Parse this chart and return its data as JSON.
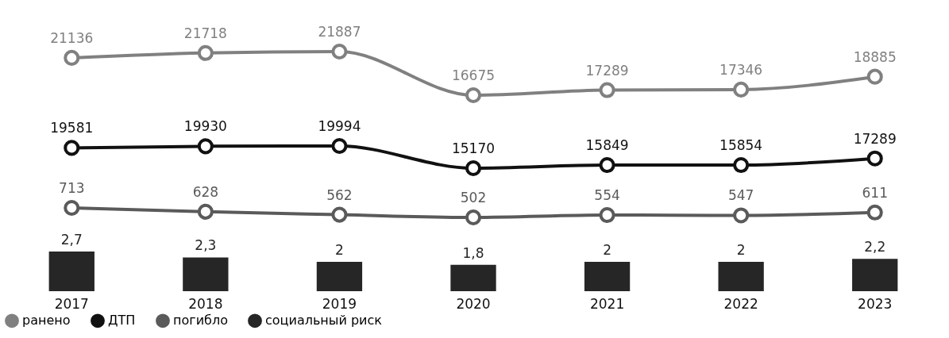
{
  "chart_data": [
    {
      "type": "line",
      "categories": [
        "2017",
        "2018",
        "2019",
        "2020",
        "2021",
        "2022",
        "2023"
      ],
      "series": [
        {
          "name": "ранено",
          "color": "#808080",
          "values": [
            21136,
            21718,
            21887,
            16675,
            17289,
            17346,
            18885
          ]
        }
      ],
      "tick_labels": false,
      "data_labels": true,
      "marker": "circle",
      "legend": "bottom"
    },
    {
      "type": "line",
      "categories": [
        "2017",
        "2018",
        "2019",
        "2020",
        "2021",
        "2022",
        "2023"
      ],
      "series": [
        {
          "name": "ДТП",
          "color": "#111111",
          "values": [
            19581,
            19930,
            19994,
            15170,
            15849,
            15854,
            17289
          ]
        }
      ],
      "tick_labels": false,
      "data_labels": true,
      "marker": "circle",
      "legend": "bottom"
    },
    {
      "type": "line",
      "categories": [
        "2017",
        "2018",
        "2019",
        "2020",
        "2021",
        "2022",
        "2023"
      ],
      "series": [
        {
          "name": "погибло",
          "color": "#5a5a5a",
          "values": [
            713,
            628,
            562,
            502,
            554,
            547,
            611
          ]
        }
      ],
      "tick_labels": false,
      "data_labels": true,
      "marker": "circle",
      "legend": "bottom"
    },
    {
      "type": "bar",
      "categories": [
        "2017",
        "2018",
        "2019",
        "2020",
        "2021",
        "2022",
        "2023"
      ],
      "series": [
        {
          "name": "социальный риск",
          "color": "#262626",
          "values": [
            2.7,
            2.3,
            2,
            1.8,
            2,
            2,
            2.2
          ],
          "value_labels": [
            "2,7",
            "2,3",
            "2",
            "1,8",
            "2",
            "2",
            "2,2"
          ]
        }
      ],
      "tick_labels": "x",
      "legend": "bottom"
    }
  ]
}
